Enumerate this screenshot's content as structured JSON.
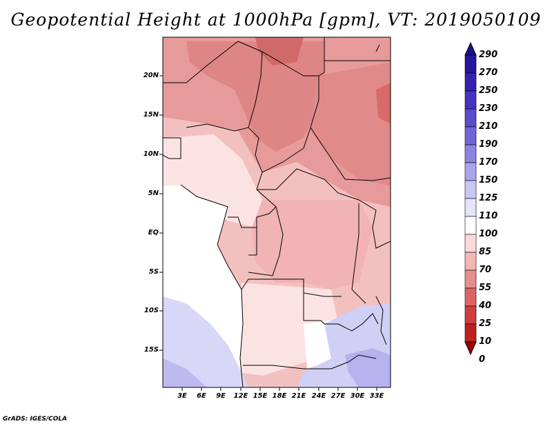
{
  "title": "Geopotential Height at 1000hPa [gpm], VT: 2019050109",
  "footer": "GrADS: IGES/COLA",
  "map_labels": {
    "lat": [
      "20N",
      "15N",
      "10N",
      "5N",
      "EQ",
      "5S",
      "10S",
      "15S"
    ],
    "lon": [
      "3E",
      "6E",
      "9E",
      "12E",
      "15E",
      "18E",
      "21E",
      "24E",
      "27E",
      "30E",
      "33E"
    ]
  },
  "map_extent": {
    "lon_min": 0,
    "lon_max": 35,
    "lat_min": -20,
    "lat_max": 24
  },
  "colorbar": {
    "labels": [
      "290",
      "270",
      "250",
      "230",
      "210",
      "190",
      "170",
      "150",
      "125",
      "110",
      "100",
      "85",
      "70",
      "55",
      "40",
      "25",
      "10",
      "0"
    ],
    "colors": [
      "#1a0f8f",
      "#26169e",
      "#3521b0",
      "#4533c0",
      "#5a4ccd",
      "#7066d8",
      "#8a84e2",
      "#a8a5ec",
      "#c8c7f4",
      "#e4e4fa",
      "#ffffff",
      "#fbd9d9",
      "#f4b5b5",
      "#e88d8d",
      "#de6464",
      "#d13c3c",
      "#c01f1f",
      "#a00000"
    ]
  }
}
